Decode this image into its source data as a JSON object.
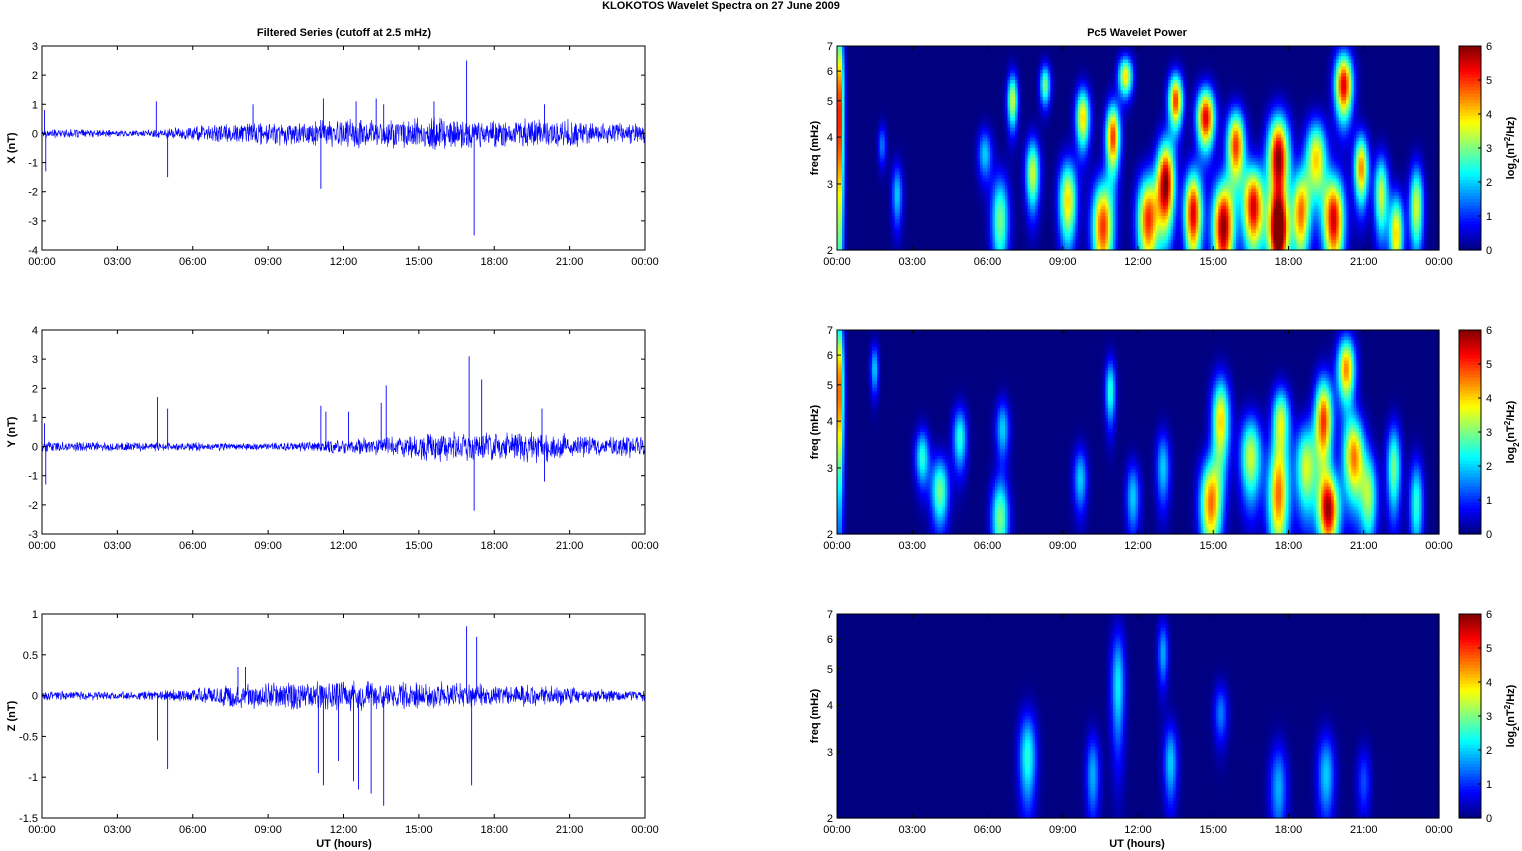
{
  "figure": {
    "suptitle": "KLOKOTOS Wavelet Spectra on 27 June      2009",
    "left_title": "Filtered Series (cutoff at 2.5 mHz)",
    "right_title": "Pc5 Wavelet Power",
    "xlabel": "UT (hours)",
    "colors": {
      "trace": "#0000ff",
      "axes": "#000000",
      "background": "#ffffff"
    }
  },
  "chart_data": [
    {
      "type": "line",
      "panel": "X",
      "ylabel": "X (nT)",
      "xlim": [
        0,
        24
      ],
      "ylim": [
        -4,
        3
      ],
      "xticks": [
        "00:00",
        "03:00",
        "06:00",
        "09:00",
        "12:00",
        "15:00",
        "18:00",
        "21:00",
        "00:00"
      ],
      "yticks": [
        "3",
        "2",
        "1",
        "0",
        "-1",
        "-2",
        "-3",
        "-4"
      ],
      "series": [
        {
          "color": "#0000ff",
          "envelope": [
            [
              0,
              0.15
            ],
            [
              4,
              0.1
            ],
            [
              6,
              0.25
            ],
            [
              8,
              0.35
            ],
            [
              10,
              0.4
            ],
            [
              12,
              0.45
            ],
            [
              14,
              0.45
            ],
            [
              16,
              0.55
            ],
            [
              18,
              0.4
            ],
            [
              20,
              0.45
            ],
            [
              21,
              0.5
            ],
            [
              22,
              0.3
            ],
            [
              24,
              0.35
            ]
          ],
          "spikes": [
            [
              0.1,
              0.8
            ],
            [
              0.15,
              -1.3
            ],
            [
              4.55,
              1.1
            ],
            [
              5.0,
              -1.5
            ],
            [
              8.4,
              1.0
            ],
            [
              11.1,
              -1.9
            ],
            [
              11.2,
              1.2
            ],
            [
              12.5,
              1.1
            ],
            [
              13.3,
              1.2
            ],
            [
              13.6,
              1.0
            ],
            [
              15.6,
              1.1
            ],
            [
              16.9,
              2.5
            ],
            [
              17.2,
              -3.5
            ],
            [
              20.0,
              1.0
            ],
            [
              24,
              -2.0
            ]
          ]
        }
      ]
    },
    {
      "type": "line",
      "panel": "Y",
      "ylabel": "Y (nT)",
      "xlim": [
        0,
        24
      ],
      "ylim": [
        -3,
        4
      ],
      "xticks": [
        "00:00",
        "03:00",
        "06:00",
        "09:00",
        "12:00",
        "15:00",
        "18:00",
        "21:00",
        "00:00"
      ],
      "yticks": [
        "4",
        "3",
        "2",
        "1",
        "0",
        "-1",
        "-2",
        "-3"
      ],
      "series": [
        {
          "color": "#0000ff",
          "envelope": [
            [
              0,
              0.15
            ],
            [
              4,
              0.15
            ],
            [
              6,
              0.15
            ],
            [
              8,
              0.12
            ],
            [
              10,
              0.15
            ],
            [
              12,
              0.25
            ],
            [
              14,
              0.3
            ],
            [
              15,
              0.4
            ],
            [
              16,
              0.5
            ],
            [
              18,
              0.45
            ],
            [
              20,
              0.5
            ],
            [
              22,
              0.3
            ],
            [
              24,
              0.35
            ]
          ],
          "spikes": [
            [
              0.1,
              0.8
            ],
            [
              0.15,
              -1.3
            ],
            [
              4.6,
              1.7
            ],
            [
              5.0,
              1.3
            ],
            [
              11.1,
              1.4
            ],
            [
              11.3,
              1.2
            ],
            [
              12.2,
              1.2
            ],
            [
              13.5,
              1.5
            ],
            [
              13.7,
              2.1
            ],
            [
              17.0,
              3.1
            ],
            [
              17.2,
              -2.2
            ],
            [
              17.5,
              2.3
            ],
            [
              19.9,
              1.3
            ],
            [
              20.0,
              -1.2
            ]
          ]
        }
      ]
    },
    {
      "type": "line",
      "panel": "Z",
      "ylabel": "Z (nT)",
      "xlim": [
        0,
        24
      ],
      "ylim": [
        -1.5,
        1
      ],
      "xticks": [
        "00:00",
        "03:00",
        "06:00",
        "09:00",
        "12:00",
        "15:00",
        "18:00",
        "21:00",
        "00:00"
      ],
      "yticks": [
        "1",
        "0.5",
        "0",
        "-0.5",
        "-1",
        "-1.5"
      ],
      "series": [
        {
          "color": "#0000ff",
          "envelope": [
            [
              0,
              0.05
            ],
            [
              4,
              0.05
            ],
            [
              6,
              0.08
            ],
            [
              8,
              0.15
            ],
            [
              10,
              0.15
            ],
            [
              12,
              0.18
            ],
            [
              14,
              0.15
            ],
            [
              16,
              0.15
            ],
            [
              18,
              0.12
            ],
            [
              20,
              0.12
            ],
            [
              22,
              0.08
            ],
            [
              24,
              0.06
            ]
          ],
          "spikes": [
            [
              4.6,
              -0.55
            ],
            [
              5.0,
              -0.9
            ],
            [
              7.8,
              0.35
            ],
            [
              8.1,
              0.35
            ],
            [
              11.0,
              -0.95
            ],
            [
              11.2,
              -1.1
            ],
            [
              11.8,
              -0.8
            ],
            [
              12.4,
              -1.05
            ],
            [
              12.6,
              -1.15
            ],
            [
              13.1,
              -1.2
            ],
            [
              13.6,
              -1.35
            ],
            [
              16.9,
              0.85
            ],
            [
              17.1,
              -1.1
            ],
            [
              17.3,
              0.72
            ],
            [
              24,
              -0.35
            ]
          ]
        }
      ]
    },
    {
      "type": "heatmap",
      "panel": "X",
      "ylabel": "freq (mHz)",
      "colorbar_label": "log2(nT2/Hz)",
      "xlim": [
        0,
        24
      ],
      "ylim": [
        2,
        7
      ],
      "clim": [
        0,
        6
      ],
      "xticks": [
        "00:00",
        "03:00",
        "06:00",
        "09:00",
        "12:00",
        "15:00",
        "18:00",
        "21:00",
        "00:00"
      ],
      "yticks": [
        "7",
        "6",
        "5",
        "4",
        "3",
        "2"
      ],
      "cticks": [
        "6",
        "5",
        "4",
        "3",
        "2",
        "1",
        "0"
      ],
      "blobs": [
        [
          0.1,
          4.5,
          0.12,
          2.2,
          5.5
        ],
        [
          1.8,
          3.8,
          0.12,
          0.35,
          1.5
        ],
        [
          2.4,
          2.8,
          0.15,
          0.4,
          2.0
        ],
        [
          5.9,
          3.6,
          0.2,
          0.4,
          2.0
        ],
        [
          6.5,
          2.4,
          0.25,
          0.5,
          3.0
        ],
        [
          7.0,
          5.0,
          0.15,
          0.6,
          3.5
        ],
        [
          7.8,
          3.2,
          0.2,
          0.5,
          3.5
        ],
        [
          8.3,
          5.5,
          0.15,
          0.5,
          3.0
        ],
        [
          9.2,
          2.7,
          0.25,
          0.5,
          4.0
        ],
        [
          9.8,
          4.5,
          0.2,
          0.6,
          4.0
        ],
        [
          10.6,
          2.3,
          0.3,
          0.5,
          5.0
        ],
        [
          11.0,
          4.0,
          0.2,
          0.6,
          5.0
        ],
        [
          11.5,
          5.8,
          0.2,
          0.5,
          4.0
        ],
        [
          12.4,
          2.4,
          0.3,
          0.5,
          5.0
        ],
        [
          13.1,
          3.0,
          0.25,
          0.6,
          6.0
        ],
        [
          13.5,
          5.0,
          0.2,
          0.6,
          5.0
        ],
        [
          14.2,
          2.5,
          0.25,
          0.5,
          5.5
        ],
        [
          14.7,
          4.5,
          0.25,
          0.6,
          5.5
        ],
        [
          15.4,
          2.3,
          0.3,
          0.5,
          6.0
        ],
        [
          15.9,
          3.8,
          0.25,
          0.6,
          5.0
        ],
        [
          16.6,
          2.6,
          0.3,
          0.5,
          5.5
        ],
        [
          17.6,
          3.5,
          0.3,
          0.7,
          6.0
        ],
        [
          17.6,
          2.2,
          0.3,
          0.4,
          6.0
        ],
        [
          18.5,
          2.5,
          0.25,
          0.5,
          4.5
        ],
        [
          19.1,
          3.5,
          0.3,
          0.6,
          4.0
        ],
        [
          19.8,
          2.4,
          0.3,
          0.5,
          5.5
        ],
        [
          20.2,
          5.5,
          0.25,
          0.8,
          5.5
        ],
        [
          20.9,
          3.3,
          0.2,
          0.5,
          4.5
        ],
        [
          21.7,
          2.8,
          0.2,
          0.5,
          3.5
        ],
        [
          22.3,
          2.2,
          0.2,
          0.4,
          4.0
        ],
        [
          23.1,
          2.6,
          0.2,
          0.5,
          3.5
        ]
      ]
    },
    {
      "type": "heatmap",
      "panel": "Y",
      "ylabel": "freq (mHz)",
      "colorbar_label": "log2(nT2/Hz)",
      "xlim": [
        0,
        24
      ],
      "ylim": [
        2,
        7
      ],
      "clim": [
        0,
        6
      ],
      "xticks": [
        "00:00",
        "03:00",
        "06:00",
        "09:00",
        "12:00",
        "15:00",
        "18:00",
        "21:00",
        "00:00"
      ],
      "yticks": [
        "7",
        "6",
        "5",
        "4",
        "3",
        "2"
      ],
      "cticks": [
        "6",
        "5",
        "4",
        "3",
        "2",
        "1",
        "0"
      ],
      "blobs": [
        [
          0.1,
          4.8,
          0.12,
          1.8,
          5.0
        ],
        [
          1.5,
          5.5,
          0.12,
          0.6,
          2.0
        ],
        [
          3.4,
          3.2,
          0.2,
          0.4,
          2.5
        ],
        [
          4.1,
          2.6,
          0.25,
          0.4,
          3.0
        ],
        [
          4.9,
          3.6,
          0.2,
          0.5,
          2.5
        ],
        [
          6.5,
          2.2,
          0.25,
          0.4,
          3.0
        ],
        [
          6.6,
          3.8,
          0.2,
          0.5,
          2.0
        ],
        [
          9.7,
          2.8,
          0.2,
          0.4,
          2.0
        ],
        [
          10.9,
          4.8,
          0.15,
          0.7,
          2.5
        ],
        [
          11.8,
          2.5,
          0.2,
          0.4,
          2.0
        ],
        [
          13.0,
          3.0,
          0.2,
          0.5,
          2.0
        ],
        [
          14.9,
          2.4,
          0.3,
          0.5,
          4.5
        ],
        [
          15.3,
          4.0,
          0.25,
          0.8,
          4.0
        ],
        [
          16.5,
          3.2,
          0.3,
          0.6,
          3.5
        ],
        [
          17.6,
          2.5,
          0.3,
          0.6,
          4.5
        ],
        [
          17.7,
          4.0,
          0.25,
          0.6,
          3.5
        ],
        [
          18.7,
          3.0,
          0.3,
          0.6,
          3.5
        ],
        [
          19.4,
          4.0,
          0.25,
          0.8,
          5.0
        ],
        [
          19.6,
          2.3,
          0.3,
          0.4,
          5.5
        ],
        [
          20.3,
          5.5,
          0.25,
          0.8,
          4.5
        ],
        [
          20.6,
          3.2,
          0.3,
          0.6,
          4.5
        ],
        [
          21.2,
          2.5,
          0.25,
          0.5,
          3.0
        ],
        [
          22.2,
          3.0,
          0.2,
          0.6,
          3.0
        ],
        [
          23.1,
          2.4,
          0.2,
          0.5,
          2.5
        ]
      ]
    },
    {
      "type": "heatmap",
      "panel": "Z",
      "ylabel": "freq (mHz)",
      "colorbar_label": "log2(nT2/Hz)",
      "xlim": [
        0,
        24
      ],
      "ylim": [
        2,
        7
      ],
      "clim": [
        0,
        6
      ],
      "xticks": [
        "00:00",
        "03:00",
        "06:00",
        "09:00",
        "12:00",
        "15:00",
        "18:00",
        "21:00",
        "00:00"
      ],
      "yticks": [
        "7",
        "6",
        "5",
        "4",
        "3",
        "2"
      ],
      "cticks": [
        "6",
        "5",
        "4",
        "3",
        "2",
        "1",
        "0"
      ],
      "blobs": [
        [
          7.6,
          2.9,
          0.25,
          0.6,
          2.5
        ],
        [
          10.2,
          2.6,
          0.2,
          0.5,
          1.8
        ],
        [
          11.2,
          4.5,
          0.2,
          1.2,
          2.2
        ],
        [
          13.3,
          2.8,
          0.2,
          0.5,
          2.0
        ],
        [
          13.0,
          5.5,
          0.15,
          0.8,
          1.8
        ],
        [
          15.3,
          3.8,
          0.2,
          0.5,
          1.5
        ],
        [
          17.6,
          2.4,
          0.25,
          0.5,
          1.8
        ],
        [
          19.5,
          2.6,
          0.25,
          0.5,
          2.0
        ],
        [
          21.0,
          2.5,
          0.2,
          0.4,
          1.2
        ]
      ]
    }
  ]
}
